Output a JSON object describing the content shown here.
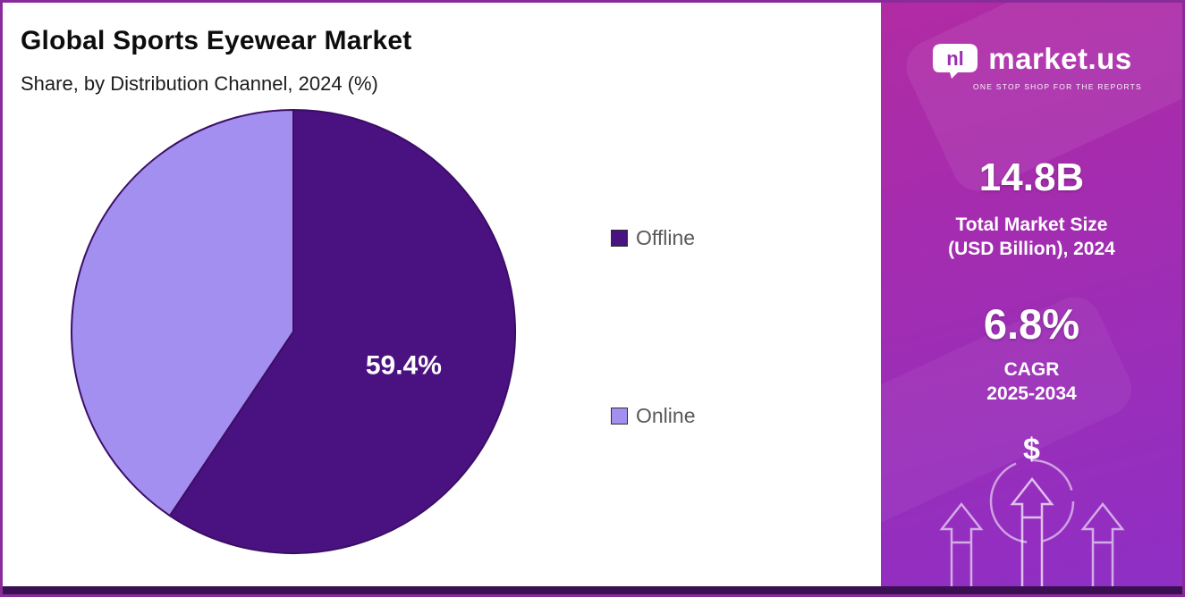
{
  "title": "Global Sports Eyewear Market",
  "subtitle": "Share, by Distribution Channel, 2024 (%)",
  "chart_data": {
    "type": "pie",
    "title": "Global Sports Eyewear Market",
    "subtitle": "Share, by Distribution Channel, 2024 (%)",
    "categories": [
      "Offline",
      "Online"
    ],
    "values": [
      59.4,
      40.6
    ],
    "data_labels": [
      "59.4%",
      ""
    ],
    "colors": [
      "#4A1180",
      "#A38FF0"
    ],
    "stroke_color": "#3c0e66",
    "start_angle_deg": 0,
    "direction": "clockwise",
    "legend_position": "right"
  },
  "sidebar": {
    "logo_text": "market.us",
    "logo_tagline": "ONE STOP SHOP FOR THE REPORTS",
    "market_size_value": "14.8B",
    "market_size_label_line1": "Total Market Size",
    "market_size_label_line2": "(USD Billion), 2024",
    "cagr_value": "6.8%",
    "cagr_label_line1": "CAGR",
    "cagr_label_line2": "2025-2034",
    "dollar_icon": "$",
    "gradient_top": "#b12ba3",
    "gradient_bottom": "#8e2fc5",
    "bottom_strip_color": "#3b1053"
  }
}
